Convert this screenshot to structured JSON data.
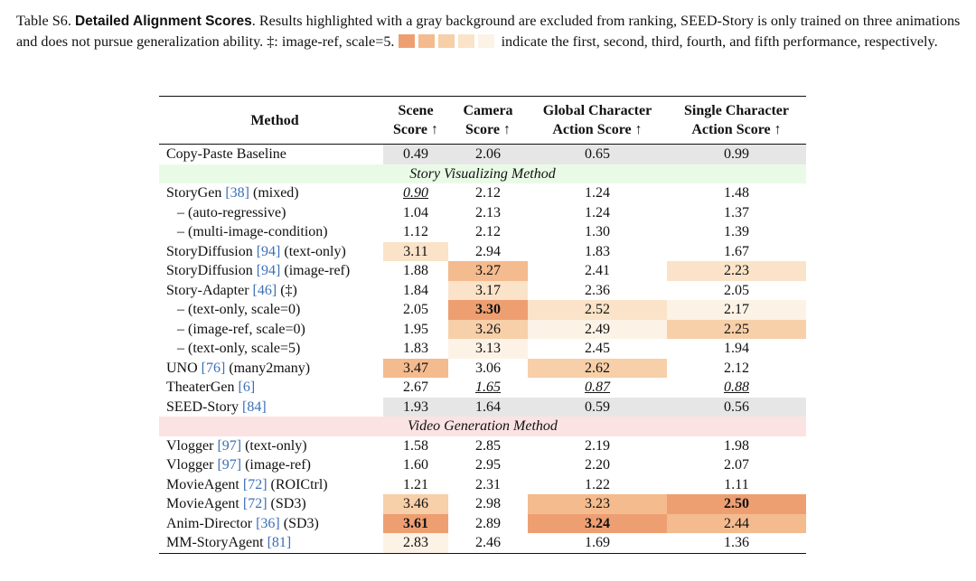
{
  "caption": {
    "label": "Table S6.",
    "title": "Detailed Alignment Scores",
    "text1": ". Results highlighted with a gray background are excluded from ranking, SEED-Story is only trained on three animations and does not pursue generalization ability. ‡: image-ref, scale=5.",
    "text2": "indicate the first, second, third, fourth, and fifth performance, respectively."
  },
  "rank_colors": [
    "#ee9f72",
    "#f4bb8e",
    "#f7cfa8",
    "#fae3c8",
    "#fdf2e6"
  ],
  "gray_color": "#e6e6e6",
  "header": {
    "method": "Method",
    "scene": [
      "Scene",
      "Score ↑"
    ],
    "camera": [
      "Camera",
      "Score ↑"
    ],
    "global": [
      "Global Character",
      "Action Score ↑"
    ],
    "single": [
      "Single Character",
      "Action Score ↑"
    ]
  },
  "baseline": {
    "name": "Copy-Paste Baseline",
    "ref": "",
    "suffix": "",
    "vals": [
      "0.49",
      "2.06",
      "0.65",
      "0.99"
    ]
  },
  "section1": {
    "label": "Story Visualizing Method",
    "color": "#e9fbe6"
  },
  "section2": {
    "label": "Video Generation Method",
    "color": "#fbe3e3"
  },
  "story_rows": [
    {
      "name": "StoryGen ",
      "ref": "[38]",
      "suffix": " (mixed)",
      "sub": false,
      "vals": [
        "0.90",
        "2.12",
        "1.24",
        "1.48"
      ],
      "style": [
        "u",
        "",
        "",
        ""
      ],
      "bg": [
        -1,
        -1,
        -1,
        -1
      ]
    },
    {
      "name": "– (auto-regressive)",
      "ref": "",
      "suffix": "",
      "sub": true,
      "vals": [
        "1.04",
        "2.13",
        "1.24",
        "1.37"
      ],
      "style": [
        "",
        "",
        "",
        ""
      ],
      "bg": [
        -1,
        -1,
        -1,
        -1
      ]
    },
    {
      "name": "– (multi-image-condition)",
      "ref": "",
      "suffix": "",
      "sub": true,
      "vals": [
        "1.12",
        "2.12",
        "1.30",
        "1.39"
      ],
      "style": [
        "",
        "",
        "",
        ""
      ],
      "bg": [
        -1,
        -1,
        -1,
        -1
      ]
    },
    {
      "name": "StoryDiffusion ",
      "ref": "[94]",
      "suffix": " (text-only)",
      "sub": false,
      "vals": [
        "3.11",
        "2.94",
        "1.83",
        "1.67"
      ],
      "style": [
        "",
        "",
        "",
        ""
      ],
      "bg": [
        3,
        -1,
        -1,
        -1
      ]
    },
    {
      "name": "StoryDiffusion ",
      "ref": "[94]",
      "suffix": " (image-ref)",
      "sub": false,
      "vals": [
        "1.88",
        "3.27",
        "2.41",
        "2.23"
      ],
      "style": [
        "",
        "",
        "",
        ""
      ],
      "bg": [
        -1,
        1,
        -1,
        3
      ]
    },
    {
      "name": "Story-Adapter ",
      "ref": "[46]",
      "suffix": " (‡)",
      "sub": false,
      "vals": [
        "1.84",
        "3.17",
        "2.36",
        "2.05"
      ],
      "style": [
        "",
        "",
        "",
        ""
      ],
      "bg": [
        -1,
        3,
        -1,
        -1
      ]
    },
    {
      "name": "– (text-only, scale=0)",
      "ref": "",
      "suffix": "",
      "sub": true,
      "vals": [
        "2.05",
        "3.30",
        "2.52",
        "2.17"
      ],
      "style": [
        "",
        "bold",
        "",
        ""
      ],
      "bg": [
        -1,
        0,
        3,
        4
      ]
    },
    {
      "name": "– (image-ref, scale=0)",
      "ref": "",
      "suffix": "",
      "sub": true,
      "vals": [
        "1.95",
        "3.26",
        "2.49",
        "2.25"
      ],
      "style": [
        "",
        "",
        "",
        ""
      ],
      "bg": [
        -1,
        2,
        4,
        2
      ]
    },
    {
      "name": "– (text-only, scale=5)",
      "ref": "",
      "suffix": "",
      "sub": true,
      "vals": [
        "1.83",
        "3.13",
        "2.45",
        "1.94"
      ],
      "style": [
        "",
        "",
        "",
        ""
      ],
      "bg": [
        -1,
        4,
        -1,
        -1
      ]
    },
    {
      "name": "UNO ",
      "ref": "[76]",
      "suffix": " (many2many)",
      "sub": false,
      "vals": [
        "3.47",
        "3.06",
        "2.62",
        "2.12"
      ],
      "style": [
        "",
        "",
        "",
        ""
      ],
      "bg": [
        1,
        -1,
        2,
        -1
      ]
    },
    {
      "name": "TheaterGen ",
      "ref": "[6]",
      "suffix": "",
      "sub": false,
      "vals": [
        "2.67",
        "1.65",
        "0.87",
        "0.88"
      ],
      "style": [
        "",
        "u",
        "u",
        "u"
      ],
      "bg": [
        -1,
        -1,
        -1,
        -1
      ]
    },
    {
      "name": "SEED-Story ",
      "ref": "[84]",
      "suffix": "",
      "sub": false,
      "vals": [
        "1.93",
        "1.64",
        "0.59",
        "0.56"
      ],
      "style": [
        "",
        "",
        "",
        ""
      ],
      "bg": [
        -1,
        -1,
        -1,
        -1
      ],
      "gray": true
    }
  ],
  "video_rows": [
    {
      "name": "Vlogger ",
      "ref": "[97]",
      "suffix": " (text-only)",
      "sub": false,
      "vals": [
        "1.58",
        "2.85",
        "2.19",
        "1.98"
      ],
      "style": [
        "",
        "",
        "",
        ""
      ],
      "bg": [
        -1,
        -1,
        -1,
        -1
      ]
    },
    {
      "name": "Vlogger ",
      "ref": "[97]",
      "suffix": " (image-ref)",
      "sub": false,
      "vals": [
        "1.60",
        "2.95",
        "2.20",
        "2.07"
      ],
      "style": [
        "",
        "",
        "",
        ""
      ],
      "bg": [
        -1,
        -1,
        -1,
        -1
      ]
    },
    {
      "name": "MovieAgent ",
      "ref": "[72]",
      "suffix": " (ROICtrl)",
      "sub": false,
      "vals": [
        "1.21",
        "2.31",
        "1.22",
        "1.11"
      ],
      "style": [
        "",
        "",
        "",
        ""
      ],
      "bg": [
        -1,
        -1,
        -1,
        -1
      ]
    },
    {
      "name": "MovieAgent ",
      "ref": "[72]",
      "suffix": " (SD3)",
      "sub": false,
      "vals": [
        "3.46",
        "2.98",
        "3.23",
        "2.50"
      ],
      "style": [
        "",
        "",
        "",
        "bold"
      ],
      "bg": [
        2,
        -1,
        1,
        0
      ]
    },
    {
      "name": "Anim-Director ",
      "ref": "[36]",
      "suffix": " (SD3)",
      "sub": false,
      "vals": [
        "3.61",
        "2.89",
        "3.24",
        "2.44"
      ],
      "style": [
        "bold",
        "",
        "bold",
        ""
      ],
      "bg": [
        0,
        -1,
        0,
        1
      ]
    },
    {
      "name": "MM-StoryAgent ",
      "ref": "[81]",
      "suffix": "",
      "sub": false,
      "vals": [
        "2.83",
        "2.46",
        "1.69",
        "1.36"
      ],
      "style": [
        "",
        "",
        "",
        ""
      ],
      "bg": [
        4,
        -1,
        -1,
        -1
      ]
    }
  ]
}
